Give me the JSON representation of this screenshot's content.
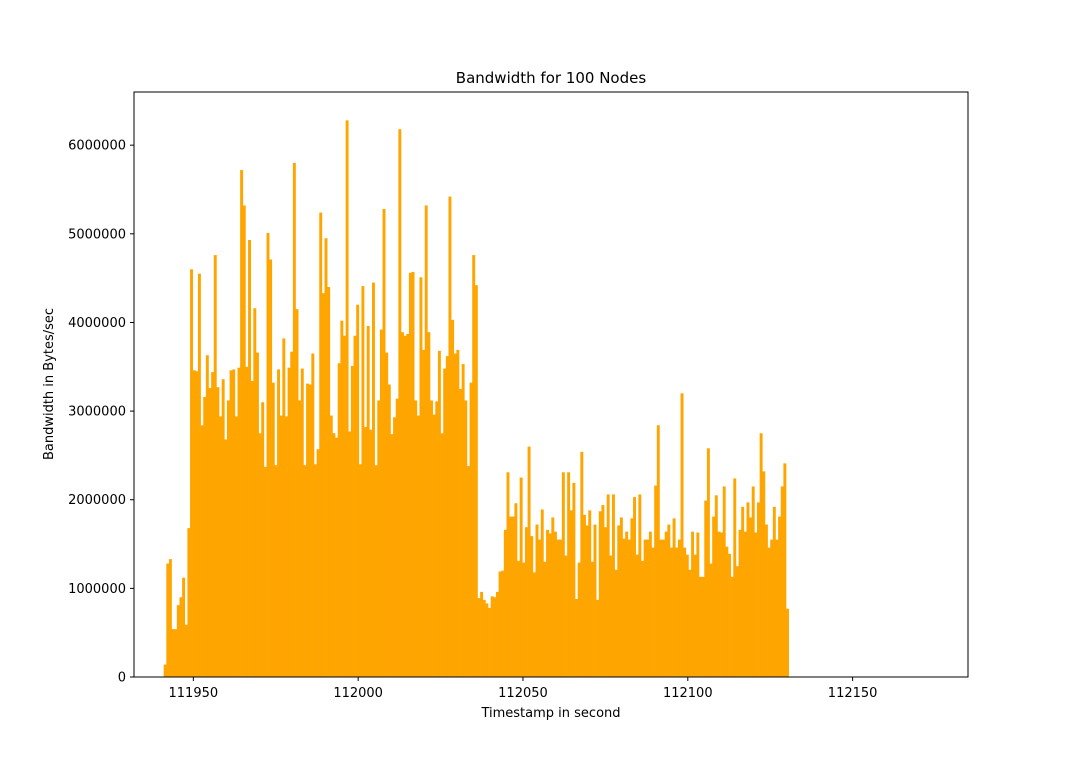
{
  "chart_data": {
    "type": "bar",
    "title": "Bandwidth for 100 Nodes",
    "xlabel": "Timestamp in second",
    "ylabel": "Bandwidth in Bytes/sec",
    "xlim": [
      111932,
      112185
    ],
    "ylim": [
      0,
      6600000
    ],
    "x_start": 111941,
    "x_step": 0.8,
    "xticks": [
      111950,
      112000,
      112050,
      112100,
      112150
    ],
    "yticks": [
      0,
      1000000,
      2000000,
      3000000,
      4000000,
      5000000,
      6000000
    ],
    "grid": false,
    "color": "#ffa500",
    "values": [
      140000,
      1280000,
      1330000,
      540000,
      540000,
      810000,
      900000,
      1120000,
      590000,
      1680000,
      4600000,
      3460000,
      3450000,
      4550000,
      2840000,
      3160000,
      3630000,
      3260000,
      3440000,
      4760000,
      3270000,
      2940000,
      3360000,
      2680000,
      3120000,
      3460000,
      3470000,
      2940000,
      3490000,
      5720000,
      5320000,
      3500000,
      4930000,
      3340000,
      4160000,
      3660000,
      2750000,
      3100000,
      2370000,
      5010000,
      4710000,
      3320000,
      2390000,
      3470000,
      2950000,
      3820000,
      2940000,
      3490000,
      3670000,
      5800000,
      4150000,
      3120000,
      3480000,
      2390000,
      3310000,
      3300000,
      3650000,
      2400000,
      2570000,
      5240000,
      4330000,
      4950000,
      4400000,
      2950000,
      2750000,
      2700000,
      3540000,
      4020000,
      3850000,
      6280000,
      2770000,
      3510000,
      3850000,
      4200000,
      2400000,
      4410000,
      2820000,
      3960000,
      2790000,
      4450000,
      2390000,
      3120000,
      3920000,
      5280000,
      3660000,
      3300000,
      2740000,
      2930000,
      3140000,
      6180000,
      3890000,
      3850000,
      3870000,
      4560000,
      4570000,
      3120000,
      2950000,
      4510000,
      3690000,
      5320000,
      3890000,
      3120000,
      2960000,
      3110000,
      3680000,
      2750000,
      3480000,
      3620000,
      5420000,
      4030000,
      3650000,
      3690000,
      3250000,
      3530000,
      3120000,
      2380000,
      3320000,
      4760000,
      4420000,
      890000,
      960000,
      870000,
      830000,
      780000,
      910000,
      900000,
      960000,
      1190000,
      1200000,
      1660000,
      2310000,
      1810000,
      1810000,
      1960000,
      1310000,
      2250000,
      1290000,
      1690000,
      2600000,
      1590000,
      1180000,
      1720000,
      1550000,
      1890000,
      1300000,
      1660000,
      1620000,
      1800000,
      1640000,
      1550000,
      1550000,
      2310000,
      1370000,
      2310000,
      1880000,
      2190000,
      880000,
      1290000,
      2540000,
      1830000,
      1710000,
      1880000,
      1300000,
      1720000,
      870000,
      1870000,
      1940000,
      1690000,
      2060000,
      1370000,
      2060000,
      1210000,
      1710000,
      1800000,
      1560000,
      1640000,
      1550000,
      1790000,
      2030000,
      1380000,
      2060000,
      1310000,
      1550000,
      1550000,
      1640000,
      1460000,
      2160000,
      2840000,
      1550000,
      1550000,
      1640000,
      1720000,
      1460000,
      1790000,
      1460000,
      1550000,
      3200000,
      1460000,
      1380000,
      1210000,
      1640000,
      1380000,
      1630000,
      1130000,
      1130000,
      1990000,
      2580000,
      1280000,
      1810000,
      2050000,
      1640000,
      1630000,
      2150000,
      1470000,
      1390000,
      1130000,
      2240000,
      1250000,
      1660000,
      1920000,
      1640000,
      1970000,
      1800000,
      2150000,
      1630000,
      1970000,
      2750000,
      2320000,
      1720000,
      1460000,
      1550000,
      1920000,
      1550000,
      1810000,
      2150000,
      2410000,
      770000
    ]
  }
}
